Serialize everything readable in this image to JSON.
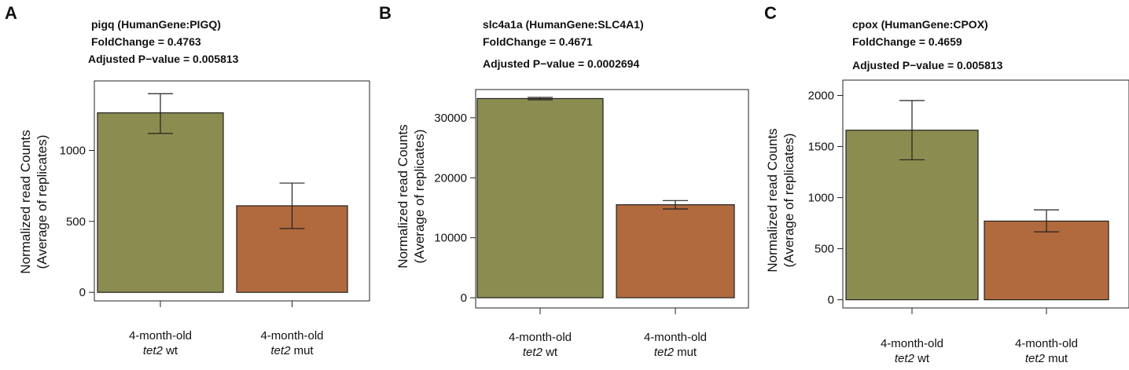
{
  "chart_data": [
    {
      "type": "bar",
      "panel": "A",
      "title_lines": [
        "pigq (HumanGene:PIGQ)",
        "FoldChange = 0.4763",
        "Adjusted P−value = 0.005813"
      ],
      "ylabel_lines": [
        "Normalized read Counts",
        "(Average of replicates)"
      ],
      "categories": [
        {
          "line1": "4-month-old",
          "gene": "tet2",
          "suffix": " wt"
        },
        {
          "line1": "4-month-old",
          "gene": "tet2",
          "suffix": " mut"
        }
      ],
      "values": [
        1265,
        610
      ],
      "error": [
        [
          1120,
          1400
        ],
        [
          450,
          770
        ]
      ],
      "colors": [
        "#8b8c4f",
        "#b16a3d"
      ],
      "yticks": [
        0,
        500,
        1000
      ],
      "ylim": [
        -60,
        1490
      ]
    },
    {
      "type": "bar",
      "panel": "B",
      "title_lines": [
        "slc4a1a (HumanGene:SLC4A1)",
        "FoldChange = 0.4671",
        "Adjusted P−value = 0.0002694"
      ],
      "ylabel_lines": [
        "Normalized read Counts",
        "(Average of replicates)"
      ],
      "categories": [
        {
          "line1": "4-month-old",
          "gene": "tet2",
          "suffix": " wt"
        },
        {
          "line1": "4-month-old",
          "gene": "tet2",
          "suffix": " mut"
        }
      ],
      "values": [
        33200,
        15500
      ],
      "error": [
        [
          33000,
          33400
        ],
        [
          14800,
          16200
        ]
      ],
      "colors": [
        "#8b8c4f",
        "#b16a3d"
      ],
      "yticks": [
        0,
        10000,
        20000,
        30000
      ],
      "ylim": [
        -1700,
        34700
      ]
    },
    {
      "type": "bar",
      "panel": "C",
      "title_lines": [
        "cpox (HumanGene:CPOX)",
        "FoldChange = 0.4659",
        "Adjusted P−value = 0.005813"
      ],
      "ylabel_lines": [
        "Normalized read Counts",
        "(Average of replicates)"
      ],
      "categories": [
        {
          "line1": "4-month-old",
          "gene": "tet2",
          "suffix": " wt"
        },
        {
          "line1": "4-month-old",
          "gene": "tet2",
          "suffix": " mut"
        }
      ],
      "values": [
        1660,
        770
      ],
      "error": [
        [
          1370,
          1950
        ],
        [
          665,
          880
        ]
      ],
      "colors": [
        "#8b8c4f",
        "#b16a3d"
      ],
      "yticks": [
        0,
        500,
        1000,
        1500,
        2000
      ],
      "ylim": [
        -80,
        2150
      ]
    }
  ]
}
